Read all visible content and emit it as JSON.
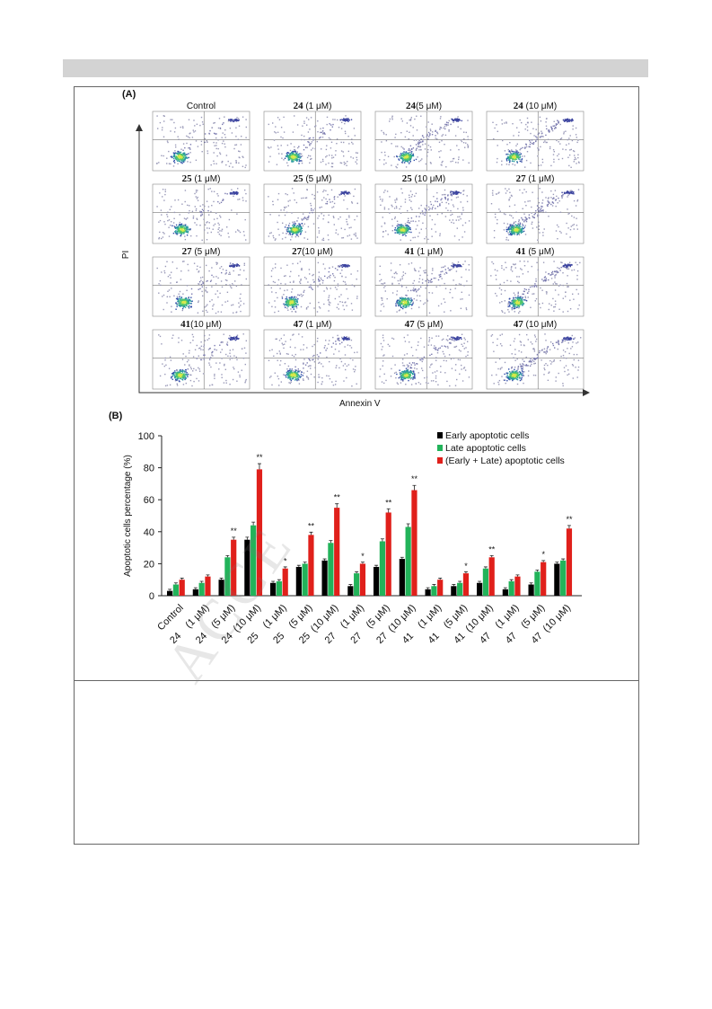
{
  "panel_a": {
    "label": "(A)",
    "y_axis_label": "PI",
    "x_axis_label": "Annexin V",
    "plots": [
      {
        "compound": "",
        "conc": "Control"
      },
      {
        "compound": "24",
        "conc": " (1 μM)"
      },
      {
        "compound": "24",
        "conc": "(5 μM)"
      },
      {
        "compound": "24",
        "conc": " (10 μM)"
      },
      {
        "compound": "25",
        "conc": " (1 μM)"
      },
      {
        "compound": "25",
        "conc": " (5 μM)"
      },
      {
        "compound": "25",
        "conc": " (10 μM)"
      },
      {
        "compound": "27",
        "conc": " (1 μM)"
      },
      {
        "compound": "27",
        "conc": " (5 μM)"
      },
      {
        "compound": "27",
        "conc": "(10 μM)"
      },
      {
        "compound": "41",
        "conc": " (1 μM)"
      },
      {
        "compound": "41",
        "conc": " (5 μM)"
      },
      {
        "compound": "41",
        "conc": "(10 μM)"
      },
      {
        "compound": "47",
        "conc": " (1 μM)"
      },
      {
        "compound": "47",
        "conc": " (5 μM)"
      },
      {
        "compound": "47",
        "conc": " (10 μM)"
      }
    ]
  },
  "panel_b": {
    "label": "(B)"
  },
  "watermark": "ACCE",
  "colors": {
    "early": "#000000",
    "late": "#22b35a",
    "total": "#e0201b",
    "band": "#d3d3d3"
  },
  "chart_data": {
    "type": "bar",
    "ylabel": "Apoptotic cells percentage (%)",
    "xlabel": "",
    "ylim": [
      0,
      100
    ],
    "yticks": [
      "0",
      "20",
      "40",
      "60",
      "80",
      "100"
    ],
    "categories": [
      "Control",
      "24    (1 μM)",
      "24    (5 μM)",
      "24  (10 μM)",
      "25    (1 μM)",
      "25    (5 μM)",
      "25  (10 μM)",
      "27    (1 μM)",
      "27    (5 μM)",
      "27  (10 μM)",
      "41    (1 μM)",
      "41    (5 μM)",
      "41  (10 μM)",
      "47    (1 μM)",
      "47    (5 μM)",
      "47  (10 μM)"
    ],
    "series": [
      {
        "name": "Early apoptotic cells",
        "values": [
          3,
          4,
          10,
          35,
          8,
          18,
          22,
          6,
          18,
          23,
          4,
          6,
          8,
          4,
          7,
          20
        ]
      },
      {
        "name": "Late apoptotic cells",
        "values": [
          7,
          8,
          24,
          44,
          9,
          20,
          33,
          14,
          34,
          43,
          6,
          8,
          17,
          9,
          15,
          22
        ]
      },
      {
        "name": "(Early + Late) apoptotic cells",
        "values": [
          10,
          12,
          35,
          79,
          17,
          38,
          55,
          20,
          52,
          66,
          10,
          14,
          24,
          12,
          21,
          42
        ]
      }
    ],
    "significance": [
      "",
      "",
      "**",
      "**",
      "*",
      "**",
      "**",
      "*",
      "**",
      "**",
      "",
      "*",
      "**",
      "",
      "*",
      "**"
    ],
    "legend_position": "top-right"
  }
}
